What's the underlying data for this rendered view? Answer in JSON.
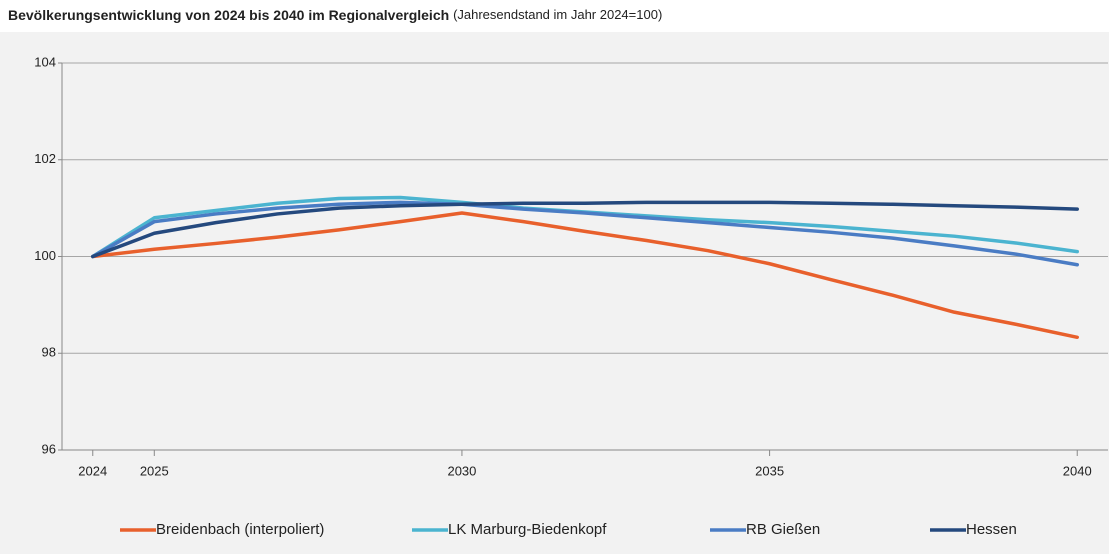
{
  "chart_data": {
    "type": "line",
    "title": "Bevölkerungsentwicklung von 2024 bis 2040 im Regionalvergleich",
    "subtitle": "(Jahresendstand im Jahr 2024=100)",
    "x": [
      2024,
      2025,
      2026,
      2027,
      2028,
      2029,
      2030,
      2031,
      2032,
      2033,
      2034,
      2035,
      2036,
      2037,
      2038,
      2039,
      2040
    ],
    "series": [
      {
        "name": "Breidenbach (interpoliert)",
        "color": "#e8602c",
        "values": [
          100,
          100.15,
          100.27,
          100.4,
          100.55,
          100.72,
          100.9,
          100.72,
          100.52,
          100.33,
          100.12,
          99.85,
          99.52,
          99.2,
          98.85,
          98.6,
          98.33
        ]
      },
      {
        "name": "LK Marburg-Biedenkopf",
        "color": "#4bb4d0",
        "values": [
          100,
          100.8,
          100.95,
          101.1,
          101.2,
          101.22,
          101.12,
          101.0,
          100.92,
          100.84,
          100.76,
          100.7,
          100.62,
          100.52,
          100.42,
          100.28,
          100.1
        ]
      },
      {
        "name": "RB Gießen",
        "color": "#4a7cc4",
        "values": [
          100,
          100.72,
          100.88,
          101.0,
          101.08,
          101.12,
          101.08,
          100.98,
          100.9,
          100.8,
          100.7,
          100.6,
          100.5,
          100.38,
          100.22,
          100.05,
          99.83
        ]
      },
      {
        "name": "Hessen",
        "color": "#24497e",
        "values": [
          100,
          100.48,
          100.7,
          100.88,
          101.0,
          101.05,
          101.08,
          101.1,
          101.1,
          101.12,
          101.12,
          101.12,
          101.1,
          101.08,
          101.05,
          101.02,
          100.98
        ]
      }
    ],
    "xlim": [
      2023.5,
      2040.5
    ],
    "xticks": [
      2024,
      2025,
      2030,
      2035,
      2040
    ],
    "ylim": [
      96,
      104
    ],
    "yticks": [
      96,
      98,
      100,
      102,
      104
    ],
    "grid": true,
    "legend": "bottom"
  }
}
